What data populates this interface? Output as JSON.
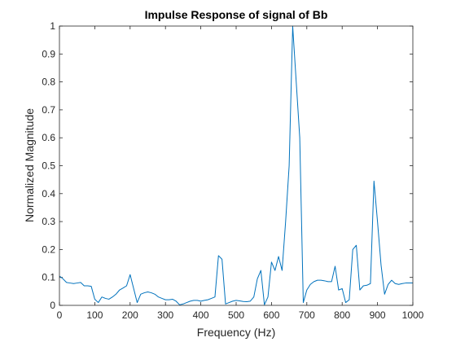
{
  "chart_data": {
    "type": "line",
    "title": "Impulse Response of signal of Bb",
    "xlabel": "Frequency (Hz)",
    "ylabel": "Normalized Magnitude",
    "xlim": [
      0,
      1000
    ],
    "ylim": [
      0,
      1
    ],
    "xticks": [
      0,
      100,
      200,
      300,
      400,
      500,
      600,
      700,
      800,
      900,
      1000
    ],
    "yticks": [
      0,
      0.1,
      0.2,
      0.3,
      0.4,
      0.5,
      0.6,
      0.7,
      0.8,
      0.9,
      1
    ],
    "ytick_labels": [
      "0",
      "0.1",
      "0.2",
      "0.3",
      "0.4",
      "0.5",
      "0.6",
      "0.7",
      "0.8",
      "0.9",
      "1"
    ],
    "grid": false,
    "series": [
      {
        "color": "#0072BD",
        "x": [
          0,
          10,
          20,
          30,
          40,
          50,
          60,
          70,
          80,
          90,
          100,
          110,
          120,
          130,
          140,
          150,
          160,
          170,
          180,
          190,
          200,
          210,
          220,
          230,
          240,
          250,
          260,
          270,
          280,
          290,
          300,
          310,
          320,
          330,
          340,
          350,
          360,
          370,
          380,
          390,
          400,
          410,
          420,
          430,
          440,
          450,
          460,
          470,
          480,
          490,
          500,
          510,
          520,
          530,
          540,
          550,
          560,
          570,
          580,
          590,
          600,
          610,
          620,
          630,
          640,
          650,
          660,
          670,
          680,
          690,
          700,
          710,
          720,
          730,
          740,
          750,
          760,
          770,
          780,
          790,
          800,
          810,
          820,
          830,
          840,
          850,
          860,
          870,
          880,
          890,
          900,
          910,
          920,
          930,
          940,
          950,
          960,
          970,
          980,
          990,
          1000
        ],
        "y": [
          0.105,
          0.095,
          0.082,
          0.08,
          0.078,
          0.08,
          0.082,
          0.07,
          0.07,
          0.068,
          0.022,
          0.01,
          0.03,
          0.025,
          0.022,
          0.03,
          0.04,
          0.055,
          0.062,
          0.07,
          0.11,
          0.06,
          0.01,
          0.04,
          0.045,
          0.048,
          0.045,
          0.04,
          0.03,
          0.025,
          0.02,
          0.02,
          0.022,
          0.015,
          0.002,
          0.005,
          0.01,
          0.015,
          0.018,
          0.018,
          0.015,
          0.018,
          0.02,
          0.025,
          0.03,
          0.178,
          0.165,
          0.005,
          0.01,
          0.015,
          0.018,
          0.016,
          0.014,
          0.013,
          0.015,
          0.03,
          0.095,
          0.125,
          0.002,
          0.03,
          0.155,
          0.125,
          0.175,
          0.125,
          0.3,
          0.5,
          1.0,
          0.8,
          0.6,
          0.01,
          0.055,
          0.075,
          0.085,
          0.09,
          0.09,
          0.088,
          0.085,
          0.085,
          0.14,
          0.055,
          0.06,
          0.01,
          0.02,
          0.2,
          0.215,
          0.055,
          0.07,
          0.072,
          0.078,
          0.445,
          0.3,
          0.145,
          0.04,
          0.075,
          0.09,
          0.078,
          0.075,
          0.078,
          0.08,
          0.08,
          0.08
        ]
      }
    ]
  }
}
